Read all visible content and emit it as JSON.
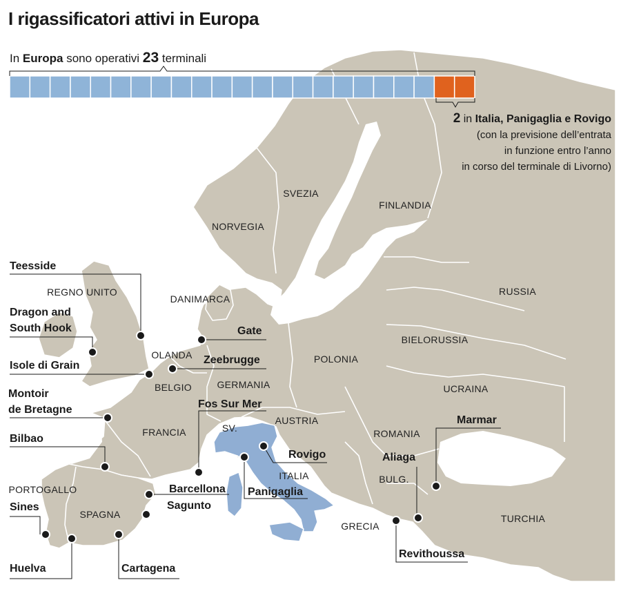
{
  "title": "I rigassificatori attivi in Europa",
  "intro": {
    "text_before": "In ",
    "region": "Europa",
    "text_middle": " sono operativi ",
    "count": "23",
    "text_after": " terminali"
  },
  "bar": {
    "total": 23,
    "highlighted": 2,
    "base_color": "#8fb4d8",
    "highlight_color": "#e0621e"
  },
  "italy_note": {
    "count": "2",
    "text_in": " in ",
    "places": "Italia, Panigaglia e Rovigo",
    "line2": "(con la previsione dell’entrata",
    "line3": "in funzione entro l’anno",
    "line4": "in corso del terminale di Livorno)"
  },
  "colors": {
    "land": "#cbc5b7",
    "italy": "#90aed3",
    "border": "#ffffff",
    "leader": "#1a1a1a"
  },
  "countries": [
    "SVEZIA",
    "FINLANDIA",
    "NORVEGIA",
    "REGNO UNITO",
    "DANIMARCA",
    "RUSSIA",
    "BIELORUSSIA",
    "OLANDA",
    "POLONIA",
    "BELGIO",
    "GERMANIA",
    "UCRAINA",
    "AUSTRIA",
    "SV.",
    "FRANCIA",
    "ROMANIA",
    "ITALIA",
    "BULG.",
    "PORTOGALLO",
    "SPAGNA",
    "TURCHIA",
    "GRECIA"
  ],
  "terminals": [
    "Teesside",
    "Dragon and",
    "South Hook",
    "Isole di Grain",
    "Gate",
    "Zeebrugge",
    "Montoir",
    "de Bretagne",
    "Fos Sur Mer",
    "Bilbao",
    "Marmar",
    "Rovigo",
    "Aliaga",
    "Barcellona",
    "Panigaglia",
    "Sagunto",
    "Sines",
    "Revithoussa",
    "Huelva",
    "Cartagena"
  ]
}
